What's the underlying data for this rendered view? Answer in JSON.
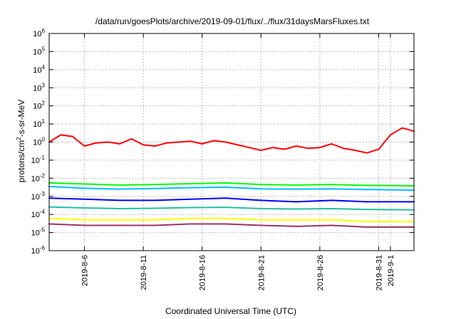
{
  "chart_data": {
    "type": "line",
    "title": "/data/run/goesPlots/archive/2019-09-01/flux/../flux/31daysMarsFluxes.txt",
    "xlabel": "Coordinated Universal Time (UTC)",
    "ylabel_main": "protons/cm",
    "ylabel_sup": "2",
    "ylabel_rest": "-s-sr-MeV",
    "yscale": "log",
    "ylim_exp": [
      -6,
      6
    ],
    "y_tick_exponents": [
      6,
      5,
      4,
      3,
      2,
      1,
      0,
      -1,
      -2,
      -3,
      -4,
      -5,
      -6
    ],
    "y_tick_base": "10",
    "xlim_days": [
      "2019-08-03",
      "2019-09-03"
    ],
    "x_ticks": [
      {
        "date": "2019-08-06",
        "label": "2019-8-6"
      },
      {
        "date": "2019-08-11",
        "label": "2019-8-11"
      },
      {
        "date": "2019-08-16",
        "label": "2019-8-16"
      },
      {
        "date": "2019-08-21",
        "label": "2019-8-21"
      },
      {
        "date": "2019-08-26",
        "label": "2019-8-26"
      },
      {
        "date": "2019-08-31",
        "label": "2019-8-31"
      },
      {
        "date": "2019-09-01",
        "label": "2019-9-1"
      }
    ],
    "grid": true,
    "series": [
      {
        "color": "#ff0000",
        "dates": [
          "2019-08-03",
          "2019-08-04",
          "2019-08-05",
          "2019-08-06",
          "2019-08-07",
          "2019-08-08",
          "2019-08-09",
          "2019-08-10",
          "2019-08-11",
          "2019-08-12",
          "2019-08-13",
          "2019-08-14",
          "2019-08-15",
          "2019-08-16",
          "2019-08-17",
          "2019-08-18",
          "2019-08-19",
          "2019-08-20",
          "2019-08-21",
          "2019-08-22",
          "2019-08-23",
          "2019-08-24",
          "2019-08-25",
          "2019-08-26",
          "2019-08-27",
          "2019-08-28",
          "2019-08-29",
          "2019-08-30",
          "2019-08-31",
          "2019-09-01",
          "2019-09-02",
          "2019-09-03"
        ],
        "values": [
          1.0,
          2.5,
          2.0,
          0.6,
          0.9,
          1.0,
          0.8,
          1.5,
          0.7,
          0.6,
          0.9,
          1.0,
          1.1,
          0.8,
          1.2,
          1.0,
          0.7,
          0.5,
          0.35,
          0.5,
          0.4,
          0.6,
          0.45,
          0.5,
          0.8,
          0.45,
          0.35,
          0.25,
          0.4,
          2.5,
          6.0,
          4.0
        ]
      },
      {
        "color": "#00ff00",
        "dates": [
          "2019-08-03",
          "2019-08-06",
          "2019-08-09",
          "2019-08-12",
          "2019-08-15",
          "2019-08-18",
          "2019-08-21",
          "2019-08-24",
          "2019-08-27",
          "2019-08-30",
          "2019-09-03"
        ],
        "values": [
          0.0055,
          0.0048,
          0.0042,
          0.0045,
          0.005,
          0.0055,
          0.0045,
          0.0042,
          0.0045,
          0.004,
          0.0038
        ]
      },
      {
        "color": "#00bfff",
        "dates": [
          "2019-08-03",
          "2019-08-06",
          "2019-08-09",
          "2019-08-12",
          "2019-08-15",
          "2019-08-18",
          "2019-08-21",
          "2019-08-24",
          "2019-08-27",
          "2019-08-30",
          "2019-09-03"
        ],
        "values": [
          0.0035,
          0.0028,
          0.0025,
          0.0027,
          0.003,
          0.0032,
          0.0026,
          0.0025,
          0.0026,
          0.0024,
          0.0022
        ]
      },
      {
        "color": "#0000ff",
        "dates": [
          "2019-08-03",
          "2019-08-06",
          "2019-08-09",
          "2019-08-12",
          "2019-08-15",
          "2019-08-18",
          "2019-08-21",
          "2019-08-24",
          "2019-08-27",
          "2019-08-30",
          "2019-09-03"
        ],
        "values": [
          0.0008,
          0.0007,
          0.0006,
          0.0006,
          0.0007,
          0.0008,
          0.0006,
          0.0005,
          0.0006,
          0.0005,
          0.0005
        ]
      },
      {
        "color": "#20c0a0",
        "dates": [
          "2019-08-03",
          "2019-08-06",
          "2019-08-09",
          "2019-08-12",
          "2019-08-15",
          "2019-08-18",
          "2019-08-21",
          "2019-08-24",
          "2019-08-27",
          "2019-08-30",
          "2019-09-03"
        ],
        "values": [
          0.00026,
          0.00023,
          0.00021,
          0.00022,
          0.00024,
          0.00025,
          0.00021,
          0.0002,
          0.00021,
          0.00019,
          0.00018
        ]
      },
      {
        "color": "#ffff00",
        "dates": [
          "2019-08-03",
          "2019-08-06",
          "2019-08-09",
          "2019-08-12",
          "2019-08-15",
          "2019-08-18",
          "2019-08-21",
          "2019-08-24",
          "2019-08-27",
          "2019-08-30",
          "2019-09-03"
        ],
        "values": [
          6e-05,
          5e-05,
          5e-05,
          5e-05,
          6e-05,
          6e-05,
          5e-05,
          5e-05,
          5e-05,
          4e-05,
          4e-05
        ]
      },
      {
        "color": "#993366",
        "dates": [
          "2019-08-03",
          "2019-08-06",
          "2019-08-09",
          "2019-08-12",
          "2019-08-15",
          "2019-08-18",
          "2019-08-21",
          "2019-08-24",
          "2019-08-27",
          "2019-08-30",
          "2019-09-03"
        ],
        "values": [
          3e-05,
          2.5e-05,
          2.5e-05,
          2.5e-05,
          3e-05,
          3e-05,
          2.5e-05,
          2.2e-05,
          2.5e-05,
          2e-05,
          2e-05
        ]
      }
    ]
  }
}
